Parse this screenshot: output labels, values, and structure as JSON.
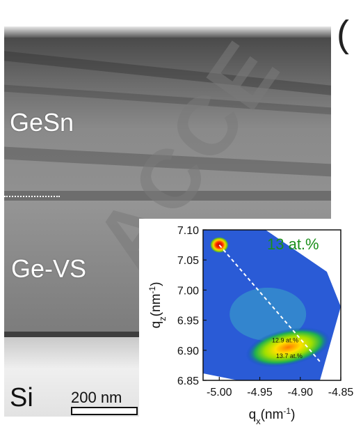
{
  "panel_label": "(",
  "watermark": "ACCE",
  "tem": {
    "layers": [
      "GeSn",
      "Ge-VS",
      "Si"
    ],
    "scale_bar": "200 nm"
  },
  "chart_data": {
    "type": "heatmap",
    "title": "",
    "annotation": "13 at.%",
    "xlabel": "q",
    "xlabel_sub": "x",
    "xlabel_unit": "(nm",
    "xlabel_unit_sup": "-1",
    "xlabel_unit_close": ")",
    "ylabel": "q",
    "ylabel_sub": "z",
    "ylabel_unit": "(nm",
    "ylabel_unit_sup": "-1",
    "ylabel_unit_close": ")",
    "xlim": [
      -5.02,
      -4.85
    ],
    "ylim": [
      6.85,
      7.1
    ],
    "x_ticks": [
      -5.0,
      -4.95,
      -4.9,
      -4.85
    ],
    "x_tick_labels": [
      "-5.00",
      "-4.95",
      "-4.90",
      "-4.85"
    ],
    "y_ticks": [
      6.85,
      6.9,
      6.95,
      7.0,
      7.05,
      7.1
    ],
    "y_tick_labels": [
      "6.85",
      "6.90",
      "6.95",
      "7.00",
      "7.05",
      "7.10"
    ],
    "peaks": [
      {
        "x": -5.0,
        "y": 7.075,
        "intensity": "max"
      },
      {
        "x": -4.915,
        "y": 6.905,
        "intensity": "high"
      }
    ],
    "relaxation_line": {
      "x": [
        -5.0,
        -4.875
      ],
      "y": [
        7.075,
        6.88
      ]
    },
    "peak_labels": [
      "12.9 at.%",
      "13.7 at.%"
    ]
  }
}
